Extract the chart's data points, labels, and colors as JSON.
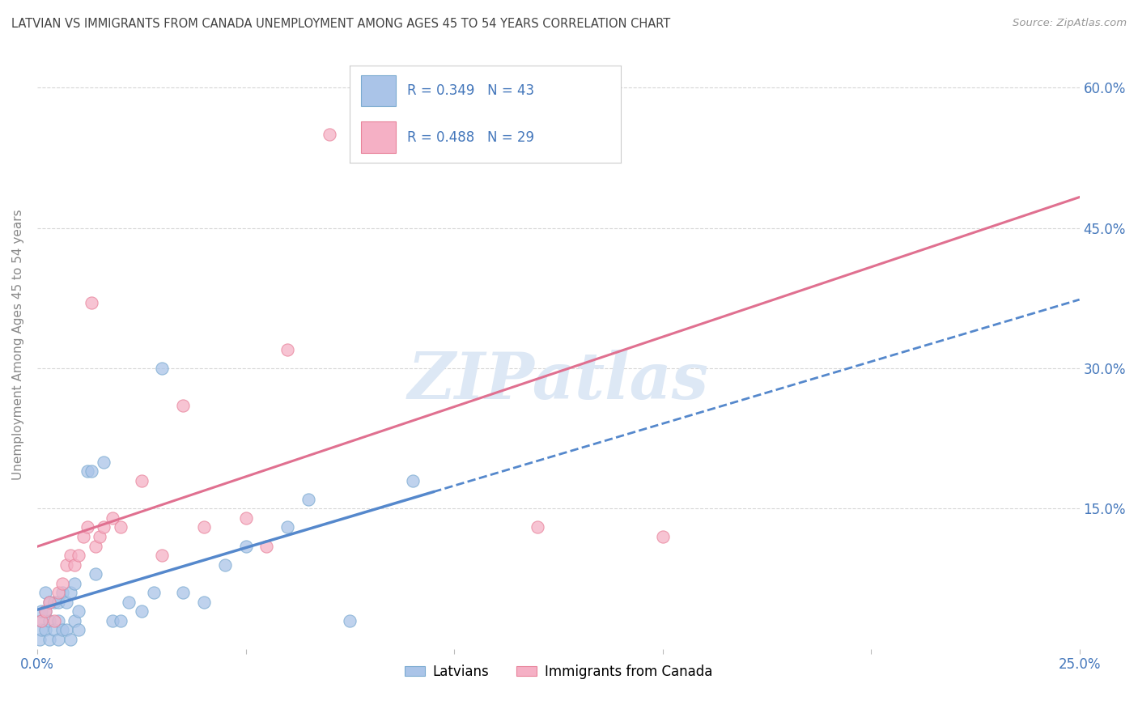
{
  "title": "LATVIAN VS IMMIGRANTS FROM CANADA UNEMPLOYMENT AMONG AGES 45 TO 54 YEARS CORRELATION CHART",
  "source": "Source: ZipAtlas.com",
  "ylabel": "Unemployment Among Ages 45 to 54 years",
  "xlim": [
    0.0,
    0.25
  ],
  "ylim": [
    0.0,
    0.65
  ],
  "xticks": [
    0.0,
    0.05,
    0.1,
    0.15,
    0.2,
    0.25
  ],
  "yticks": [
    0.15,
    0.3,
    0.45,
    0.6
  ],
  "ytick_labels_right": [
    "15.0%",
    "30.0%",
    "45.0%",
    "60.0%"
  ],
  "xtick_labels": [
    "0.0%",
    "",
    "",
    "",
    "",
    "25.0%"
  ],
  "latvian_R": 0.349,
  "latvian_N": 43,
  "canada_R": 0.488,
  "canada_N": 29,
  "latvian_color": "#aac4e8",
  "canada_color": "#f5b0c5",
  "latvian_edge_color": "#7aaad0",
  "canada_edge_color": "#e8829a",
  "latvian_line_color": "#5588cc",
  "canada_line_color": "#e07090",
  "background_color": "#ffffff",
  "grid_color": "#cccccc",
  "text_color": "#4477bb",
  "title_color": "#444444",
  "source_color": "#999999",
  "ylabel_color": "#888888",
  "watermark_color": "#dde8f5",
  "latvian_x": [
    0.0005,
    0.001,
    0.001,
    0.001,
    0.002,
    0.002,
    0.002,
    0.003,
    0.003,
    0.003,
    0.004,
    0.004,
    0.005,
    0.005,
    0.005,
    0.006,
    0.006,
    0.007,
    0.007,
    0.008,
    0.008,
    0.009,
    0.009,
    0.01,
    0.01,
    0.012,
    0.013,
    0.014,
    0.016,
    0.018,
    0.02,
    0.022,
    0.025,
    0.028,
    0.03,
    0.035,
    0.04,
    0.045,
    0.05,
    0.06,
    0.065,
    0.075,
    0.09
  ],
  "latvian_y": [
    0.01,
    0.02,
    0.03,
    0.04,
    0.02,
    0.04,
    0.06,
    0.01,
    0.03,
    0.05,
    0.02,
    0.05,
    0.01,
    0.03,
    0.05,
    0.02,
    0.06,
    0.02,
    0.05,
    0.01,
    0.06,
    0.03,
    0.07,
    0.02,
    0.04,
    0.19,
    0.19,
    0.08,
    0.2,
    0.03,
    0.03,
    0.05,
    0.04,
    0.06,
    0.3,
    0.06,
    0.05,
    0.09,
    0.11,
    0.13,
    0.16,
    0.03,
    0.18
  ],
  "canada_x": [
    0.001,
    0.002,
    0.003,
    0.004,
    0.005,
    0.006,
    0.007,
    0.008,
    0.009,
    0.01,
    0.011,
    0.012,
    0.013,
    0.014,
    0.015,
    0.016,
    0.018,
    0.02,
    0.025,
    0.03,
    0.035,
    0.04,
    0.05,
    0.055,
    0.06,
    0.07,
    0.08,
    0.12,
    0.15
  ],
  "canada_y": [
    0.03,
    0.04,
    0.05,
    0.03,
    0.06,
    0.07,
    0.09,
    0.1,
    0.09,
    0.1,
    0.12,
    0.13,
    0.37,
    0.11,
    0.12,
    0.13,
    0.14,
    0.13,
    0.18,
    0.1,
    0.26,
    0.13,
    0.14,
    0.11,
    0.32,
    0.55,
    0.55,
    0.13,
    0.12
  ],
  "latvian_line_end": 0.25,
  "canada_line_end": 0.25
}
